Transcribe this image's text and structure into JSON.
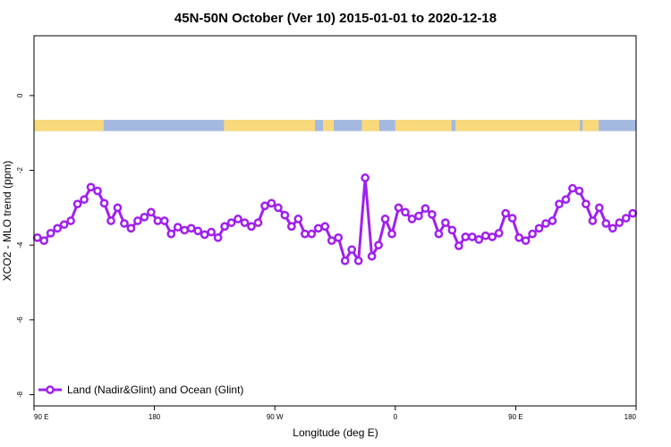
{
  "chart_data": {
    "type": "line",
    "title": "45N-50N October (Ver 10)   2015-01-01 to 2020-12-18",
    "xlabel": "Longitude (deg E)",
    "ylabel": "XCO2 - MLO trend (ppm)",
    "x_ticks": [
      {
        "value": 90,
        "label": "90 E"
      },
      {
        "value": 180,
        "label": "180"
      },
      {
        "value": 270,
        "label": "90 W"
      },
      {
        "value": 360,
        "label": "0"
      },
      {
        "value": 450,
        "label": "90 E"
      },
      {
        "value": 540,
        "label": "180"
      }
    ],
    "y_ticks": [
      {
        "value": 0,
        "label": "0"
      },
      {
        "value": -2,
        "label": "-2"
      },
      {
        "value": -4,
        "label": "-4"
      },
      {
        "value": -6,
        "label": "-6"
      },
      {
        "value": -8,
        "label": "-8"
      }
    ],
    "xlim": [
      90,
      540
    ],
    "ylim": [
      -8.3,
      1.6
    ],
    "grid": false,
    "legend_position": "bottom-left",
    "land_ocean_strip": {
      "y_range": [
        -0.65,
        -0.95
      ],
      "land_color": "#f9d97b",
      "ocean_color": "#a4b9df",
      "land_segments": [
        [
          90,
          142
        ],
        [
          232,
          300
        ],
        [
          306,
          314
        ],
        [
          335,
          348
        ],
        [
          360,
          402
        ],
        [
          405,
          498
        ],
        [
          500,
          512
        ]
      ]
    },
    "series": [
      {
        "name": "Land (Nadir&Glint) and Ocean (Glint)",
        "color": "#a020f0",
        "x": [
          92.5,
          97.5,
          102.5,
          107.5,
          112.5,
          117.5,
          122.5,
          127.5,
          132.5,
          137.5,
          142.5,
          147.5,
          152.5,
          157.5,
          162.5,
          167.5,
          172.5,
          177.5,
          182.5,
          187.5,
          192.5,
          197.5,
          202.5,
          207.5,
          212.5,
          217.5,
          222.5,
          227.5,
          232.5,
          237.5,
          242.5,
          247.5,
          252.5,
          257.5,
          262.5,
          267.5,
          272.5,
          277.5,
          282.5,
          287.5,
          292.5,
          297.5,
          302.5,
          307.5,
          312.5,
          317.5,
          322.5,
          327.5,
          332.5,
          337.5,
          342.5,
          347.5,
          352.5,
          357.5,
          362.5,
          367.5,
          372.5,
          377.5,
          382.5,
          387.5,
          392.5,
          397.5,
          402.5,
          407.5,
          412.5,
          417.5,
          422.5,
          427.5,
          432.5,
          437.5,
          442.5,
          447.5,
          452.5,
          457.5,
          462.5,
          467.5,
          472.5,
          477.5,
          482.5,
          487.5,
          492.5,
          497.5,
          502.5,
          507.5,
          512.5,
          517.5,
          522.5,
          527.5,
          532.5,
          537.5
        ],
        "y": [
          -3.8,
          -3.88,
          -3.68,
          -3.55,
          -3.45,
          -3.35,
          -2.9,
          -2.78,
          -2.45,
          -2.55,
          -2.88,
          -3.35,
          -3.0,
          -3.42,
          -3.55,
          -3.35,
          -3.25,
          -3.12,
          -3.35,
          -3.35,
          -3.7,
          -3.52,
          -3.6,
          -3.55,
          -3.62,
          -3.72,
          -3.65,
          -3.8,
          -3.5,
          -3.4,
          -3.3,
          -3.4,
          -3.5,
          -3.4,
          -2.95,
          -2.88,
          -3.0,
          -3.2,
          -3.5,
          -3.3,
          -3.7,
          -3.7,
          -3.55,
          -3.5,
          -3.88,
          -3.8,
          -4.42,
          -4.12,
          -4.42,
          -2.2,
          -4.3,
          -4.0,
          -3.3,
          -3.7,
          -3.0,
          -3.12,
          -3.3,
          -3.22,
          -3.02,
          -3.18,
          -3.7,
          -3.4,
          -3.6,
          -4.02,
          -3.78,
          -3.78,
          -3.85,
          -3.75,
          -3.78,
          -3.68,
          -3.15,
          -3.28,
          -3.8,
          -3.88,
          -3.7,
          -3.55,
          -3.42,
          -3.35,
          -2.9,
          -2.78,
          -2.48,
          -2.55,
          -2.9,
          -3.35,
          -3.0,
          -3.42,
          -3.55,
          -3.4,
          -3.28,
          -3.15
        ]
      }
    ]
  }
}
